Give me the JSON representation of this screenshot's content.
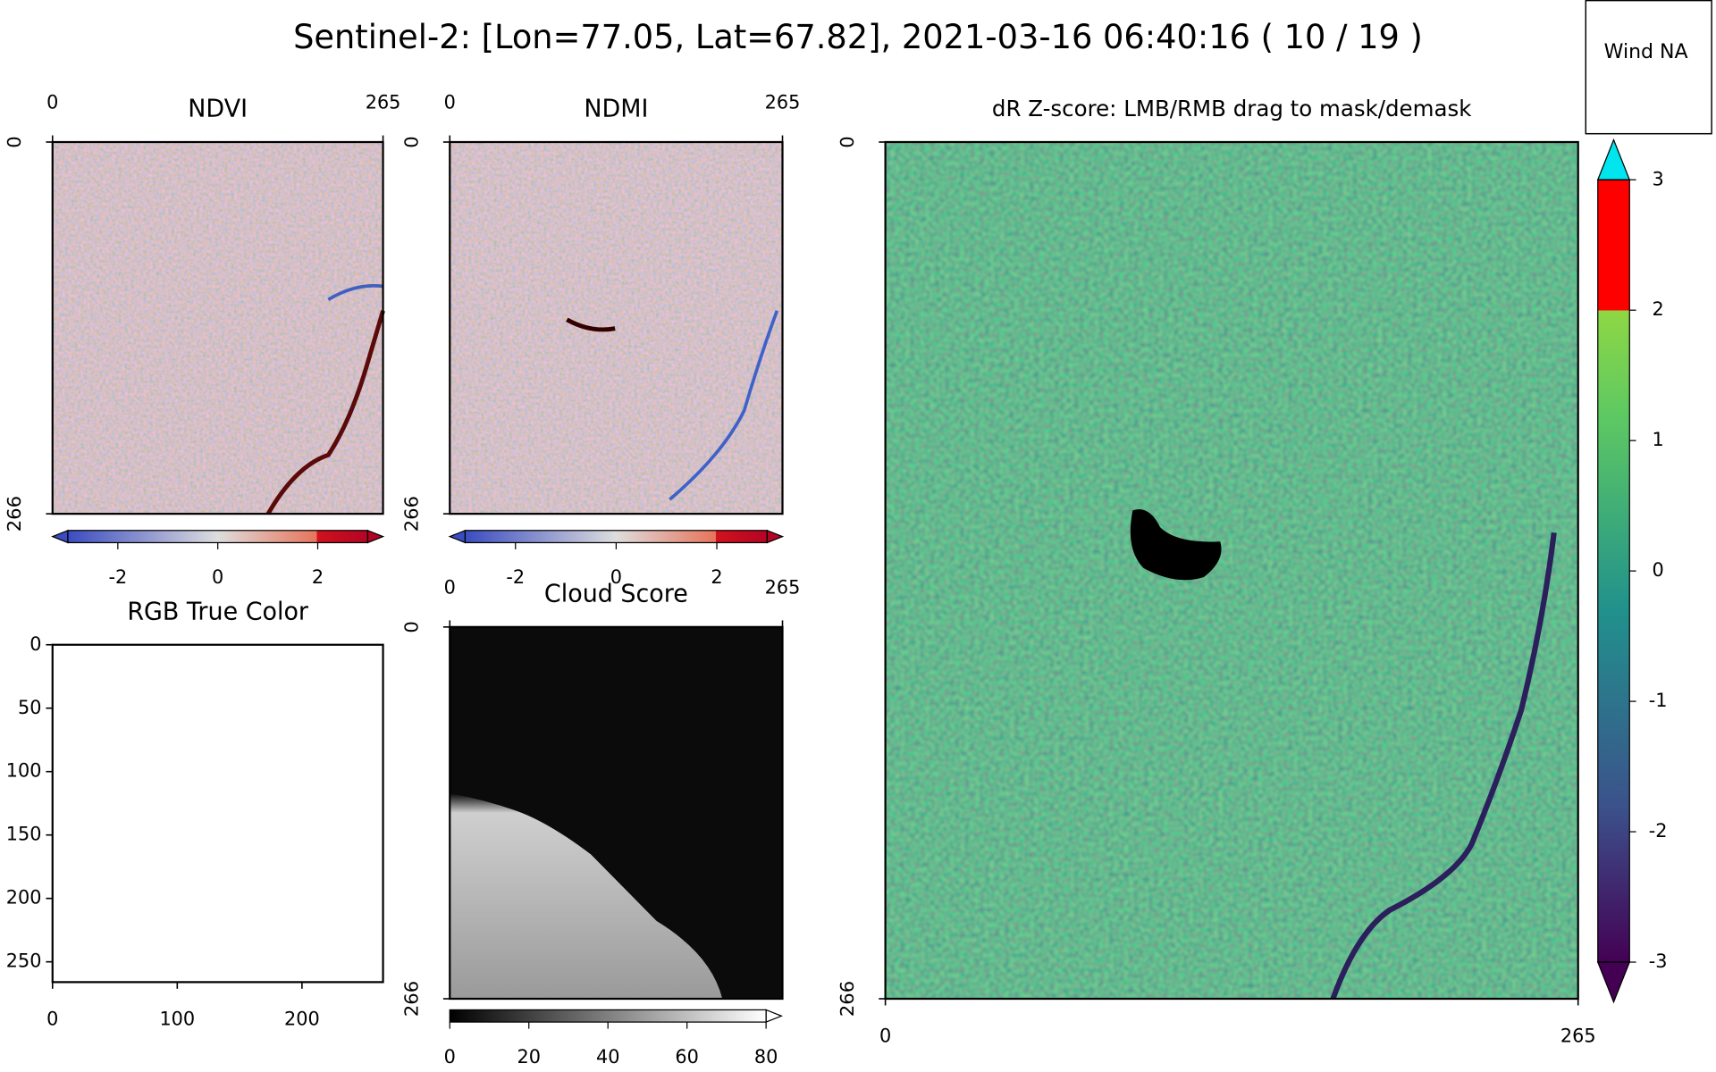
{
  "title": "Sentinel-2: [Lon=77.05, Lat=67.82], 2021-03-16 06:40:16 ( 10 / 19 )",
  "wind_label": "Wind NA",
  "panels": [
    {
      "title": "NDVI",
      "xlim": [
        0,
        265
      ],
      "ylim": [
        0,
        266
      ],
      "xticks": [
        0,
        265
      ],
      "yticks": [
        0,
        266
      ],
      "colorbar_lim": [
        -3,
        3
      ],
      "colorbar_ticks": [
        -2,
        0,
        2
      ]
    },
    {
      "title": "NDMI",
      "xlim": [
        0,
        265
      ],
      "ylim": [
        0,
        266
      ],
      "xticks": [
        0,
        265
      ],
      "yticks": [
        0,
        266
      ],
      "colorbar_lim": [
        -3,
        3
      ],
      "colorbar_ticks": [
        -2,
        0,
        2
      ]
    },
    {
      "title": "RGB True Color",
      "xlim": [
        0,
        265
      ],
      "ylim": [
        0,
        266
      ],
      "xticks": [
        0,
        100,
        200
      ],
      "yticks": [
        0,
        50,
        100,
        150,
        200,
        250
      ]
    },
    {
      "title": "Cloud Score",
      "xlim": [
        0,
        265
      ],
      "ylim": [
        0,
        266
      ],
      "xticks": [
        0,
        265
      ],
      "yticks": [
        0,
        266
      ],
      "colorbar_lim": [
        0,
        80
      ],
      "colorbar_ticks": [
        0,
        20,
        40,
        60,
        80
      ]
    },
    {
      "title": "dR Z-score: LMB/RMB drag to mask/demask",
      "xlim": [
        0,
        265
      ],
      "ylim": [
        0,
        266
      ],
      "xticks": [
        0,
        265
      ],
      "yticks": [
        0,
        266
      ],
      "colorbar_lim": [
        -3,
        3
      ],
      "colorbar_ticks": [
        -3,
        -2,
        -1,
        0,
        1,
        2,
        3
      ]
    }
  ]
}
